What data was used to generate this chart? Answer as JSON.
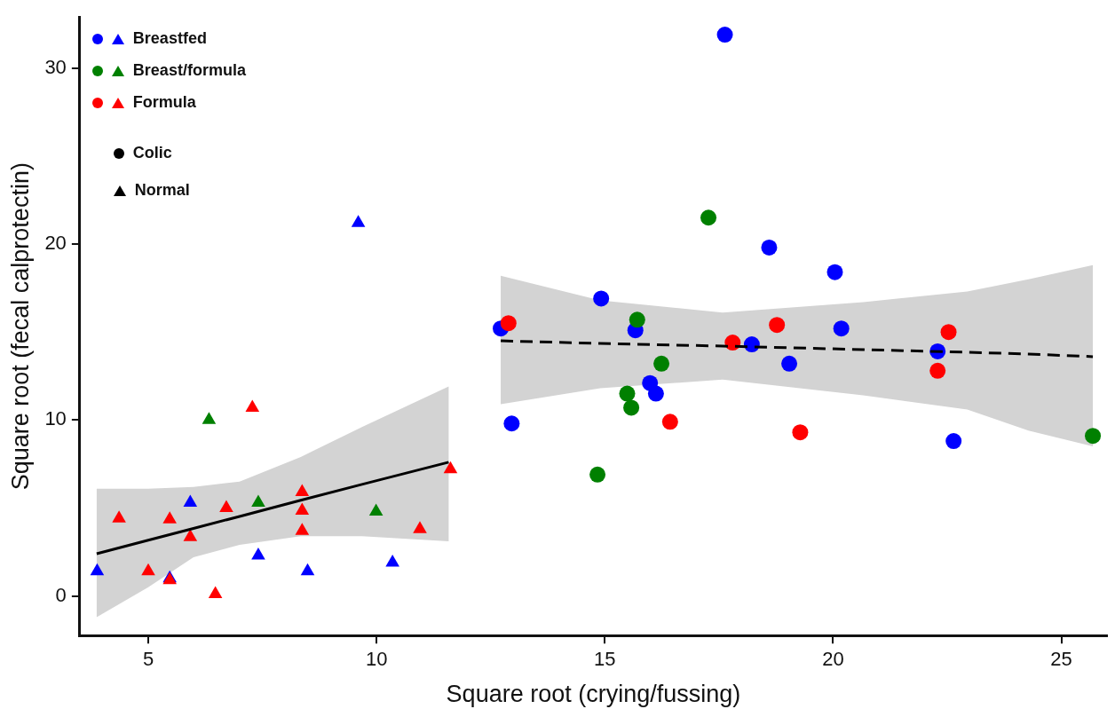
{
  "chart_data": {
    "type": "scatter",
    "xlabel": "Square root (crying/fussing)",
    "ylabel": "Square root (fecal calprotectin)",
    "xlim": [
      3.5,
      26
    ],
    "ylim": [
      -2.25,
      32.9
    ],
    "xticks": [
      5,
      10,
      15,
      20,
      25
    ],
    "yticks": [
      0,
      10,
      20,
      30
    ],
    "grid": false,
    "legend": "top left",
    "annotations": [
      "Colic",
      "Normal"
    ],
    "series": [
      {
        "name": "Breastfed",
        "color": "#0000ff",
        "marker": "circle",
        "x": [
          12.72,
          14.92,
          15.67,
          15.99,
          16.12,
          12.96,
          18.22,
          19.04,
          20.18,
          20.04,
          17.63,
          18.6,
          22.29,
          22.64
        ],
        "values": [
          15.2,
          16.9,
          15.1,
          12.1,
          11.5,
          9.8,
          14.3,
          13.2,
          15.2,
          18.4,
          31.9,
          19.8,
          13.9,
          8.8
        ]
      },
      {
        "color": "#0000ff",
        "marker": "triangle",
        "x": [
          3.88,
          5.47,
          5.92,
          7.41,
          8.49,
          10.35,
          9.6
        ],
        "values": [
          1.4,
          1.0,
          5.3,
          2.3,
          1.4,
          1.9,
          21.2
        ]
      },
      {
        "name": "Breast/formula",
        "color": "#008000",
        "marker": "circle",
        "x": [
          15.71,
          16.24,
          15.49,
          15.58,
          14.84,
          17.27,
          25.69
        ],
        "values": [
          15.7,
          13.2,
          11.5,
          10.7,
          6.9,
          21.5,
          9.1
        ]
      },
      {
        "color": "#008000",
        "marker": "triangle",
        "x": [
          6.33,
          7.41,
          9.99
        ],
        "values": [
          10.0,
          5.3,
          4.8
        ]
      },
      {
        "name": "Formula",
        "color": "#ff0000",
        "marker": "circle",
        "x": [
          12.89,
          17.8,
          18.77,
          16.43,
          19.28,
          22.53,
          22.29
        ],
        "values": [
          15.5,
          14.4,
          15.4,
          9.9,
          9.3,
          15.0,
          12.8
        ]
      },
      {
        "color": "#ff0000",
        "marker": "triangle",
        "x": [
          4.36,
          5.47,
          5.0,
          5.47,
          5.92,
          6.47,
          6.71,
          7.28,
          8.37,
          8.37,
          8.37,
          10.95,
          11.62
        ],
        "values": [
          4.4,
          4.35,
          1.4,
          0.9,
          3.35,
          0.1,
          5.0,
          10.7,
          5.9,
          4.85,
          3.7,
          3.8,
          7.2
        ]
      },
      {
        "type": "line",
        "color": "#000000",
        "marker": "none",
        "line_style": "solid",
        "x": [
          3.87,
          5.0,
          5.99,
          7.0,
          8.34,
          9.68,
          11.58
        ],
        "values": [
          2.4,
          3.17,
          3.84,
          4.52,
          5.44,
          6.34,
          7.6
        ],
        "lower": [
          -1.2,
          0.5,
          2.2,
          2.9,
          3.4,
          3.4,
          3.1
        ],
        "upper": [
          6.1,
          6.1,
          6.2,
          6.5,
          7.9,
          9.6,
          11.9
        ]
      },
      {
        "type": "line",
        "color": "#000000",
        "marker": "none",
        "line_style": "dashed",
        "x": [
          12.72,
          14.9,
          17.58,
          20.66,
          22.94,
          24.28,
          25.69
        ],
        "values": [
          14.5,
          14.35,
          14.2,
          14.0,
          13.85,
          13.75,
          13.6
        ],
        "lower": [
          10.9,
          11.8,
          12.3,
          11.4,
          10.6,
          9.4,
          8.5
        ],
        "upper": [
          18.2,
          16.8,
          16.1,
          16.7,
          17.3,
          18.0,
          18.8
        ]
      }
    ]
  }
}
